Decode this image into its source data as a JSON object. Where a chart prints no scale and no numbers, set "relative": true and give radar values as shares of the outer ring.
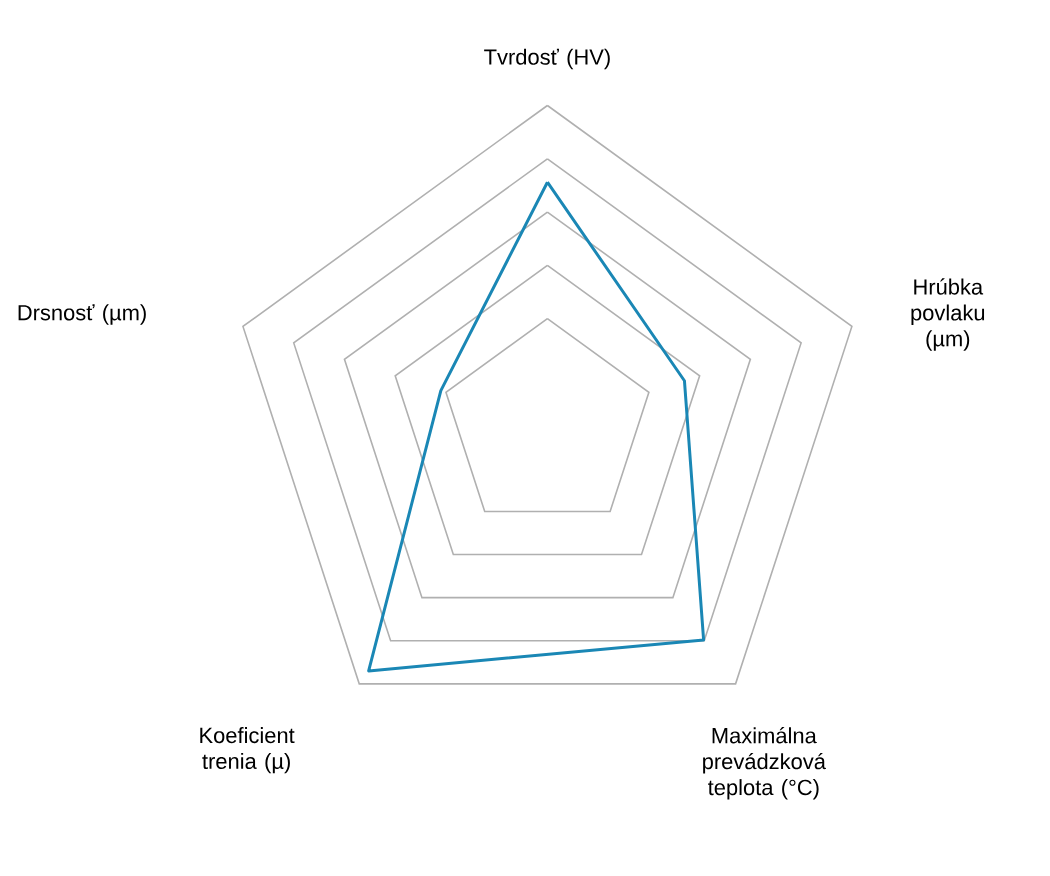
{
  "chart_data": {
    "type": "radar",
    "relative": true,
    "grid": true,
    "categories": [
      "Tvrdosť (HV)",
      "Hrúbka povlaku (µm)",
      "Maximálna prevádzková teplota (°C)",
      "Koeficient trenia  (µ)",
      "Drsnosť (µm)"
    ],
    "series": [
      {
        "color": "#1a87b5",
        "values": [
          0.76,
          0.45,
          0.83,
          0.95,
          0.35
        ]
      }
    ]
  }
}
